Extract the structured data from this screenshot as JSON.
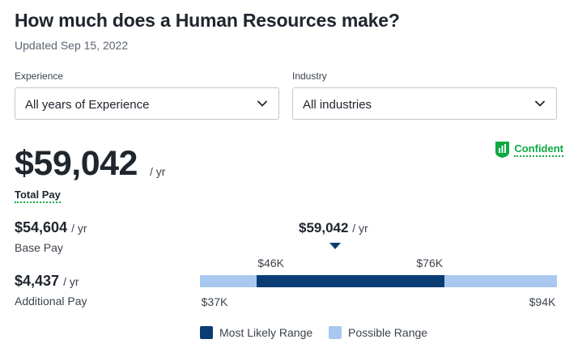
{
  "header": {
    "title": "How much does a Human Resources make?",
    "updated": "Updated Sep 15, 2022"
  },
  "filters": {
    "experience": {
      "label": "Experience",
      "value": "All years of Experience",
      "icon": "chevron-down-icon"
    },
    "industry": {
      "label": "Industry",
      "value": "All industries",
      "icon": "chevron-down-icon"
    }
  },
  "confidence": {
    "label": "Confident",
    "icon": "confidence-bars-icon",
    "color": "#0caa41"
  },
  "total_pay": {
    "value": "$59,042",
    "unit": "/ yr",
    "label": "Total Pay"
  },
  "base_pay": {
    "value": "$54,604",
    "unit": "/ yr",
    "label": "Base Pay"
  },
  "additional_pay": {
    "value": "$4,437",
    "unit": "/ yr",
    "label": "Additional Pay"
  },
  "range": {
    "median_value": "$59,042",
    "median_unit": "/ yr",
    "min_label": "$37K",
    "max_label": "$94K",
    "likely_low_label": "$46K",
    "likely_high_label": "$76K",
    "min": 37000,
    "max": 94000,
    "likely_low": 46000,
    "likely_high": 76000,
    "median": 59042,
    "likely_color": "#0b3d75",
    "possible_color": "#a9c8f0"
  },
  "legend": {
    "likely": "Most Likely Range",
    "possible": "Possible Range"
  }
}
